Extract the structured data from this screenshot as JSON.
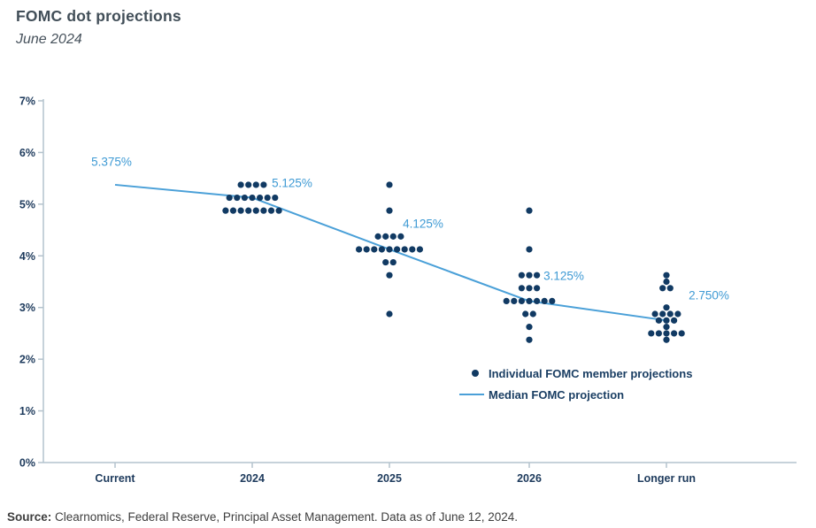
{
  "header": {
    "title": "FOMC dot projections",
    "subtitle": "June 2024"
  },
  "colors": {
    "dot": "#113a63",
    "median_line": "#4aa0d8",
    "median_label": "#3e9ad4",
    "axis_line": "#b4c3cd",
    "axis_text": "#1d3a5c",
    "legend_text": "#1a3e63",
    "title_text": "#414e58",
    "source_text": "#3d3d3d"
  },
  "chart_data": {
    "type": "scatter",
    "title": "FOMC dot projections",
    "subtitle": "June 2024",
    "xlabel": "",
    "ylabel": "",
    "ylim": [
      0,
      7
    ],
    "yticks": [
      "0%",
      "1%",
      "2%",
      "3%",
      "4%",
      "5%",
      "6%",
      "7%"
    ],
    "grid": false,
    "legend_position": "inside-right",
    "categories": [
      "Current",
      "2024",
      "2025",
      "2026",
      "Longer run"
    ],
    "median_series": {
      "name": "Median FOMC projection",
      "values": [
        5.375,
        5.125,
        4.125,
        3.125,
        2.75
      ],
      "labels": [
        "5.375%",
        "5.125%",
        "4.125%",
        "3.125%",
        "2.750%"
      ]
    },
    "dots_series_name": "Individual FOMC member projections",
    "dots": [
      {
        "category": "Current",
        "distribution": []
      },
      {
        "category": "2024",
        "distribution": [
          {
            "value": 5.375,
            "count": 4
          },
          {
            "value": 5.125,
            "count": 7
          },
          {
            "value": 4.875,
            "count": 8
          }
        ]
      },
      {
        "category": "2025",
        "distribution": [
          {
            "value": 5.375,
            "count": 1
          },
          {
            "value": 4.875,
            "count": 1
          },
          {
            "value": 4.375,
            "count": 4
          },
          {
            "value": 4.125,
            "count": 9
          },
          {
            "value": 3.875,
            "count": 2
          },
          {
            "value": 3.625,
            "count": 1
          },
          {
            "value": 2.875,
            "count": 1
          }
        ]
      },
      {
        "category": "2026",
        "distribution": [
          {
            "value": 4.875,
            "count": 1
          },
          {
            "value": 4.125,
            "count": 1
          },
          {
            "value": 3.625,
            "count": 3
          },
          {
            "value": 3.375,
            "count": 3
          },
          {
            "value": 3.125,
            "count": 7
          },
          {
            "value": 2.875,
            "count": 2
          },
          {
            "value": 2.625,
            "count": 1
          },
          {
            "value": 2.375,
            "count": 1
          }
        ]
      },
      {
        "category": "Longer run",
        "distribution": [
          {
            "value": 3.625,
            "count": 1
          },
          {
            "value": 3.5,
            "count": 1
          },
          {
            "value": 3.375,
            "count": 2
          },
          {
            "value": 3.0,
            "count": 1
          },
          {
            "value": 2.875,
            "count": 4
          },
          {
            "value": 2.75,
            "count": 3
          },
          {
            "value": 2.625,
            "count": 1
          },
          {
            "value": 2.5,
            "count": 5
          },
          {
            "value": 2.375,
            "count": 1
          }
        ]
      }
    ],
    "legend": [
      "Individual FOMC member projections",
      "Median FOMC projection"
    ]
  },
  "source": {
    "label": "Source:",
    "text": " Clearnomics, Federal Reserve, Principal Asset Management. Data as of June 12, 2024."
  }
}
